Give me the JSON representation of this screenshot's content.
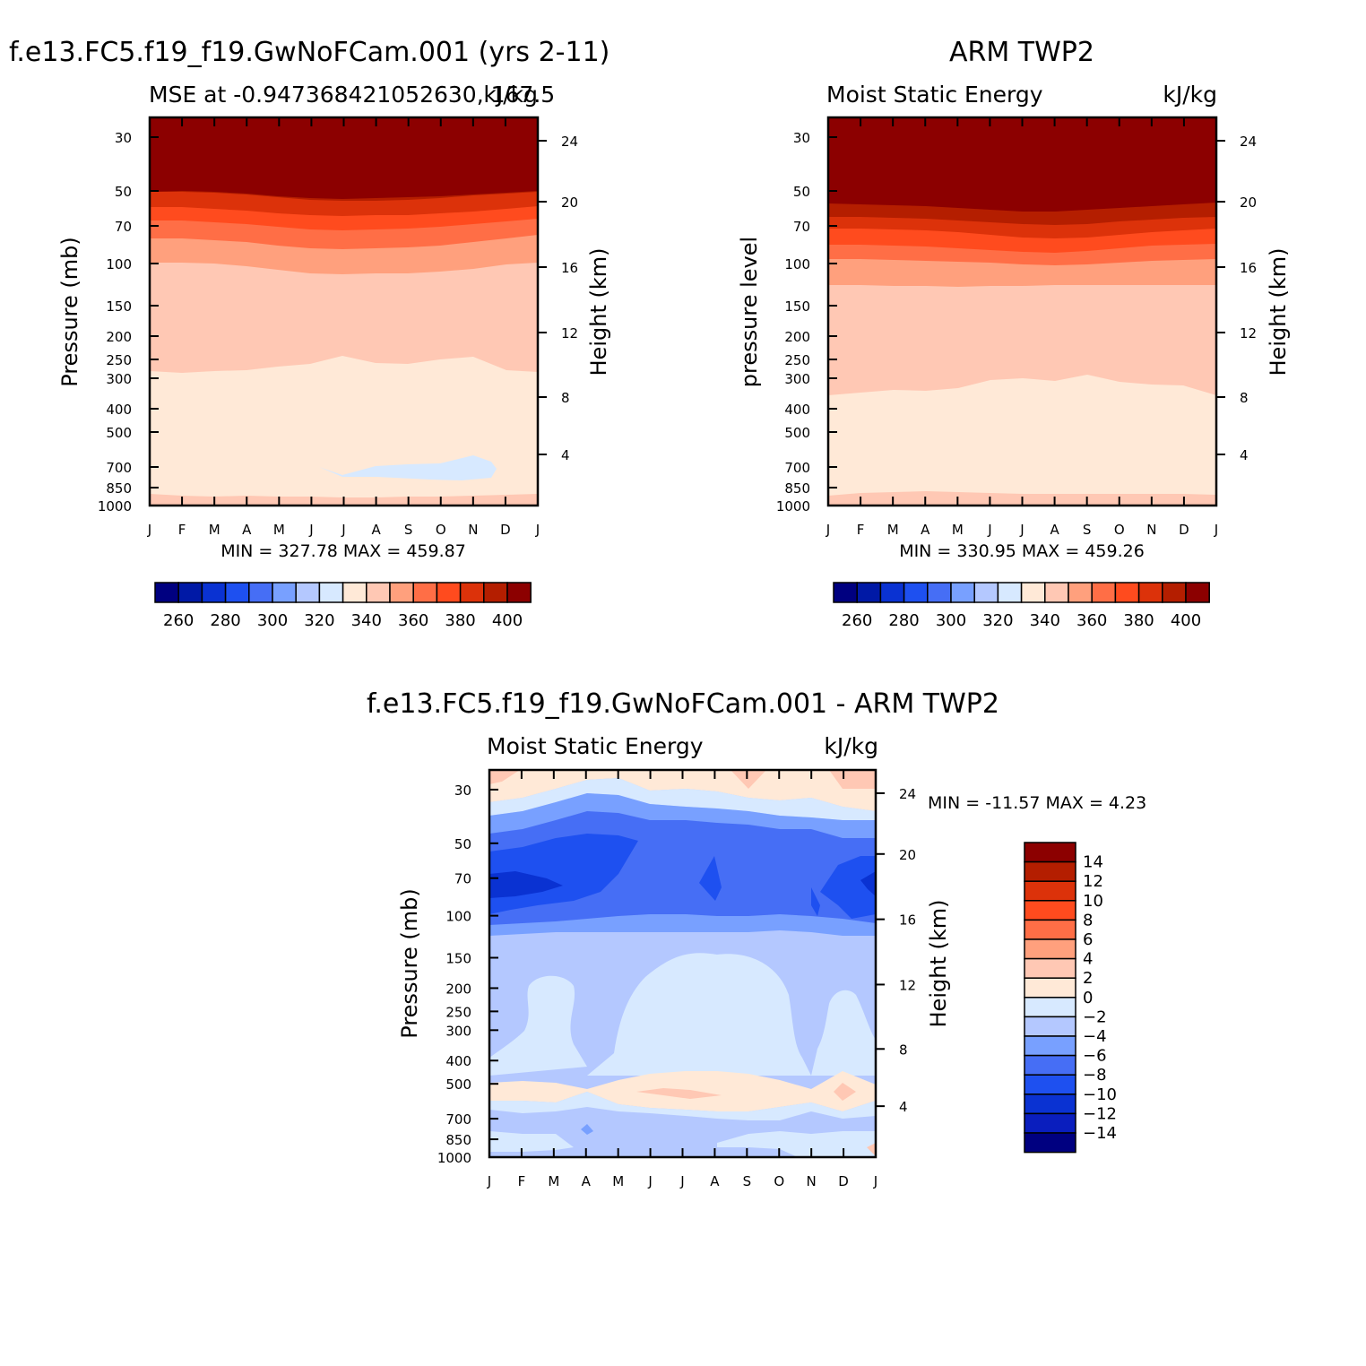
{
  "colors": {
    "abs_levels": [
      "#000080",
      "#0019a6",
      "#0a32d2",
      "#1e50f0",
      "#466ef5",
      "#78a0ff",
      "#b4c8ff",
      "#d7e9ff",
      "#ffe9d7",
      "#ffc8b4",
      "#ffa07d",
      "#ff6e46",
      "#ff4b1e",
      "#dc320a",
      "#b41e00",
      "#8c0000"
    ],
    "diff_levels": [
      "#000080",
      "#0a1ebe",
      "#0a32d2",
      "#1e50f0",
      "#466ef5",
      "#78a0ff",
      "#b4c8ff",
      "#d7e9ff",
      "#ffe9d7",
      "#ffc8b4",
      "#ffa07d",
      "#ff6e46",
      "#ff4b1e",
      "#dc320a",
      "#b41e00",
      "#8c0000"
    ]
  },
  "chart_data": [
    {
      "type": "heatmap",
      "panel": "model",
      "title": "f.e13.FC5.f19_f19.GwNoFCam.001 (yrs 2-11)",
      "left_label": "MSE at -0.947368421052630, 167.5",
      "right_label": "kJ/kg",
      "ylabel": "Pressure (mb)",
      "y2label": "Height (km)",
      "x_ticks": [
        "J",
        "F",
        "M",
        "A",
        "M",
        "J",
        "J",
        "A",
        "S",
        "O",
        "N",
        "D",
        "J"
      ],
      "y_ticks": [
        "30",
        "50",
        "70",
        "100",
        "150",
        "200",
        "250",
        "300",
        "400",
        "500",
        "700",
        "850",
        "1000"
      ],
      "y2_ticks": [
        "24",
        "20",
        "16",
        "12",
        "8",
        "4"
      ],
      "stats": "MIN =  327.78  MAX =  459.87",
      "colorbar_labels": [
        "260",
        "280",
        "300",
        "320",
        "340",
        "360",
        "380",
        "400"
      ],
      "min": 327.78,
      "max": 459.87,
      "months": [
        "Jan",
        "Feb",
        "Mar",
        "Apr",
        "May",
        "Jun",
        "Jul",
        "Aug",
        "Sep",
        "Oct",
        "Nov",
        "Dec",
        "Jan"
      ],
      "series": [
        {
          "name": "340 contour (mb)",
          "values": [
            290,
            295,
            290,
            280,
            275,
            260,
            245,
            262,
            262,
            252,
            245,
            285,
            290
          ]
        },
        {
          "name": "360 contour (mb)",
          "values": [
            97,
            98,
            100,
            103,
            108,
            113,
            113,
            113,
            112,
            110,
            106,
            97,
            97
          ]
        },
        {
          "name": "400 contour (mb)",
          "values": [
            54,
            54,
            54,
            55,
            57,
            59,
            60,
            60,
            59,
            58,
            56,
            54,
            54
          ]
        }
      ]
    },
    {
      "type": "heatmap",
      "panel": "obs",
      "title": "ARM TWP2",
      "left_label": "Moist Static Energy",
      "right_label": "kJ/kg",
      "ylabel": "pressure level",
      "y2label": "Height (km)",
      "x_ticks": [
        "J",
        "F",
        "M",
        "A",
        "M",
        "J",
        "J",
        "A",
        "S",
        "O",
        "N",
        "D",
        "J"
      ],
      "y_ticks": [
        "30",
        "50",
        "70",
        "100",
        "150",
        "200",
        "250",
        "300",
        "400",
        "500",
        "700",
        "850",
        "1000"
      ],
      "y2_ticks": [
        "24",
        "20",
        "16",
        "12",
        "8",
        "4"
      ],
      "stats": "MIN =  330.95  MAX =  459.26",
      "colorbar_labels": [
        "260",
        "280",
        "300",
        "320",
        "340",
        "360",
        "380",
        "400"
      ],
      "min": 330.95,
      "max": 459.26,
      "months": [
        "Jan",
        "Feb",
        "Mar",
        "Apr",
        "May",
        "Jun",
        "Jul",
        "Aug",
        "Sep",
        "Oct",
        "Nov",
        "Dec",
        "Jan"
      ],
      "series": [
        {
          "name": "340 contour (mb)",
          "values": [
            375,
            368,
            365,
            365,
            355,
            330,
            320,
            330,
            310,
            320,
            325,
            325,
            375
          ]
        },
        {
          "name": "360 contour (mb)",
          "values": [
            122,
            122,
            123,
            123,
            124,
            124,
            123,
            122,
            121,
            121,
            121,
            121,
            122
          ]
        },
        {
          "name": "400 contour (mb)",
          "values": [
            59,
            60,
            61,
            62,
            63,
            64,
            65,
            64,
            63,
            62,
            61,
            60,
            59
          ]
        }
      ]
    },
    {
      "type": "heatmap",
      "panel": "diff",
      "title": "f.e13.FC5.f19_f19.GwNoFCam.001 - ARM TWP2",
      "left_label": "Moist Static Energy",
      "right_label": "kJ/kg",
      "ylabel": "Pressure (mb)",
      "y2label": "Height (km)",
      "x_ticks": [
        "J",
        "F",
        "M",
        "A",
        "M",
        "J",
        "J",
        "A",
        "S",
        "O",
        "N",
        "D",
        "J"
      ],
      "y_ticks": [
        "30",
        "50",
        "70",
        "100",
        "150",
        "200",
        "250",
        "300",
        "400",
        "500",
        "700",
        "850",
        "1000"
      ],
      "y2_ticks": [
        "24",
        "20",
        "16",
        "12",
        "8",
        "4"
      ],
      "stats": "MIN = -11.57  MAX =    4.23",
      "colorbar_labels": [
        "14",
        "12",
        "10",
        "8",
        "6",
        "4",
        "2",
        "0",
        "-2",
        "-4",
        "-6",
        "-8",
        "-10",
        "-12",
        "-14"
      ],
      "min": -11.57,
      "max": 4.23
    }
  ]
}
